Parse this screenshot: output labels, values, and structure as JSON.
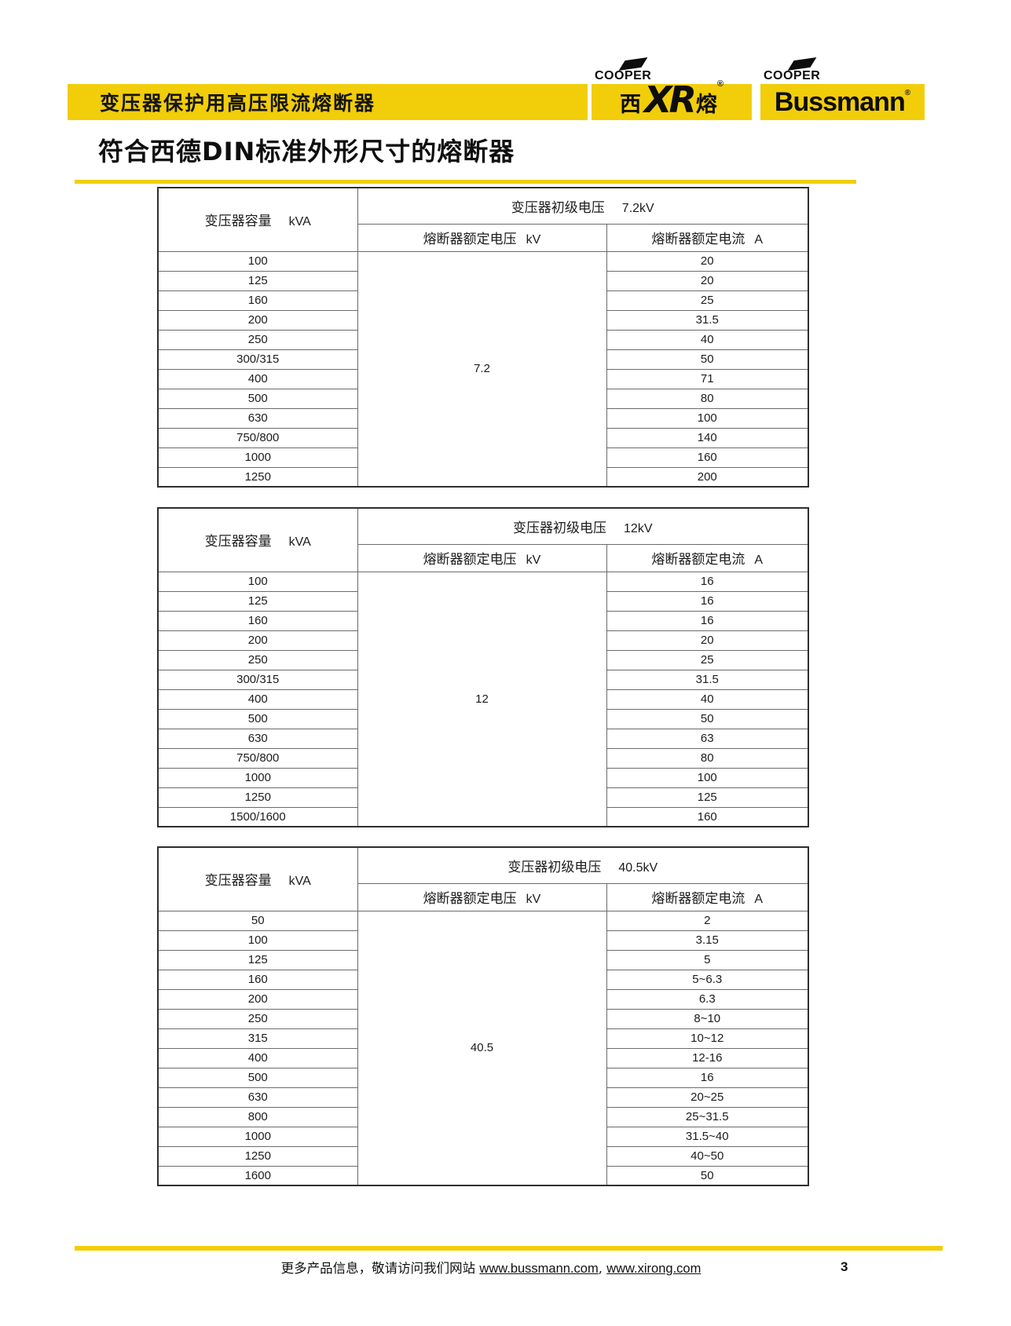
{
  "header": {
    "bar_title": "变压器保护用高压限流熔断器",
    "logos": [
      {
        "cooper": "COOPER",
        "brand_left": "西",
        "brand_mid": "XR",
        "brand_right": "熔",
        "reg": "®"
      },
      {
        "cooper": "COOPER",
        "brand": "Bussmann",
        "reg": "®"
      }
    ]
  },
  "title": "符合西德DIN标准外形尺寸的熔断器",
  "tables": [
    {
      "capacity_label": "变压器容量",
      "capacity_unit": "kVA",
      "primary_label": "变压器初级电压",
      "primary_value": "7.2kV",
      "voltage_label": "熔断器额定电压",
      "voltage_unit": "kV",
      "current_label": "熔断器额定电流",
      "current_unit": "A",
      "voltage_value": "7.2",
      "rows": [
        [
          "100",
          "20"
        ],
        [
          "125",
          "20"
        ],
        [
          "160",
          "25"
        ],
        [
          "200",
          "31.5"
        ],
        [
          "250",
          "40"
        ],
        [
          "300/315",
          "50"
        ],
        [
          "400",
          "71"
        ],
        [
          "500",
          "80"
        ],
        [
          "630",
          "100"
        ],
        [
          "750/800",
          "140"
        ],
        [
          "1000",
          "160"
        ],
        [
          "1250",
          "200"
        ]
      ]
    },
    {
      "capacity_label": "变压器容量",
      "capacity_unit": "kVA",
      "primary_label": "变压器初级电压",
      "primary_value": "12kV",
      "voltage_label": "熔断器额定电压",
      "voltage_unit": "kV",
      "current_label": "熔断器额定电流",
      "current_unit": "A",
      "voltage_value": "12",
      "rows": [
        [
          "100",
          "16"
        ],
        [
          "125",
          "16"
        ],
        [
          "160",
          "16"
        ],
        [
          "200",
          "20"
        ],
        [
          "250",
          "25"
        ],
        [
          "300/315",
          "31.5"
        ],
        [
          "400",
          "40"
        ],
        [
          "500",
          "50"
        ],
        [
          "630",
          "63"
        ],
        [
          "750/800",
          "80"
        ],
        [
          "1000",
          "100"
        ],
        [
          "1250",
          "125"
        ],
        [
          "1500/1600",
          "160"
        ]
      ]
    },
    {
      "capacity_label": "变压器容量",
      "capacity_unit": "kVA",
      "primary_label": "变压器初级电压",
      "primary_value": "40.5kV",
      "voltage_label": "熔断器额定电压",
      "voltage_unit": "kV",
      "current_label": "熔断器额定电流",
      "current_unit": "A",
      "voltage_value": "40.5",
      "rows": [
        [
          "50",
          "2"
        ],
        [
          "100",
          "3.15"
        ],
        [
          "125",
          "5"
        ],
        [
          "160",
          "5~6.3"
        ],
        [
          "200",
          "6.3"
        ],
        [
          "250",
          "8~10"
        ],
        [
          "315",
          "10~12"
        ],
        [
          "400",
          "12-16"
        ],
        [
          "500",
          "16"
        ],
        [
          "630",
          "20~25"
        ],
        [
          "800",
          "25~31.5"
        ],
        [
          "1000",
          "31.5~40"
        ],
        [
          "1250",
          "40~50"
        ],
        [
          "1600",
          "50"
        ]
      ]
    }
  ],
  "footer": {
    "prefix": "更多产品信息，敬请访问我们网站 ",
    "links": [
      "www.bussmann.com",
      "www.xirong.com"
    ],
    "separator": ", ",
    "page_number": "3"
  }
}
